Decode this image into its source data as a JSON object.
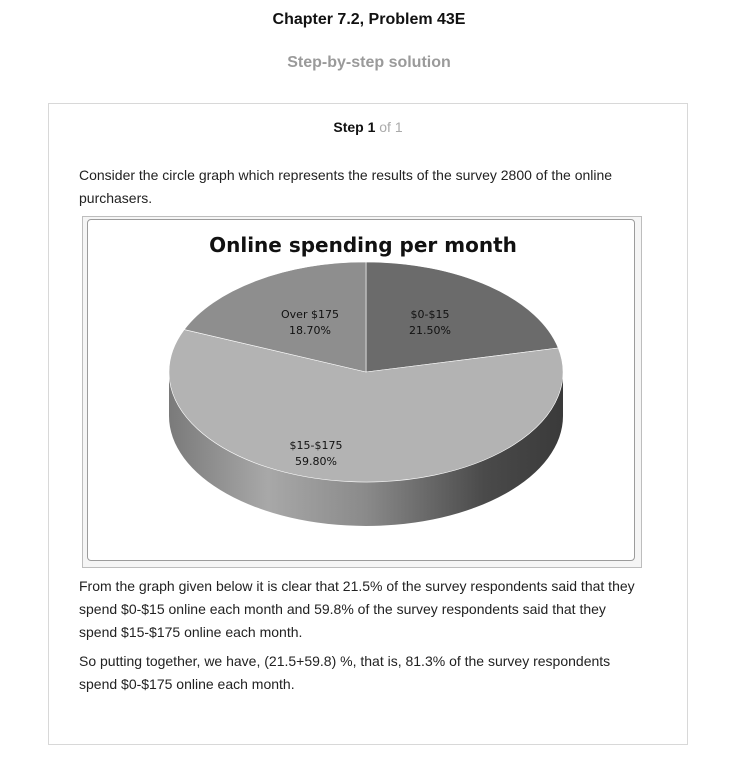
{
  "header": {
    "title": "Chapter 7.2, Problem 43E",
    "subtitle": "Step-by-step solution"
  },
  "step": {
    "label": "Step 1",
    "of": "of 1"
  },
  "content": {
    "intro": "Consider the circle graph which represents the results of the survey 2800 of the online purchasers.",
    "explanation": "From the graph given below it is clear that 21.5% of the survey respondents said that they spend $0-$15 online each month and 59.8% of the survey respondents said that they spend $15-$175 online each month.",
    "conclusion": "So putting together, we have, (21.5+59.8) %, that is, 81.3% of the survey respondents spend $0-$175 online each month."
  },
  "chart_data": {
    "type": "pie",
    "title": "Online spending per month",
    "categories": [
      "$0-$15",
      "$15-$175",
      "Over $175"
    ],
    "values": [
      21.5,
      59.8,
      18.7
    ],
    "labels": [
      "21.50%",
      "59.80%",
      "18.70%"
    ],
    "colors": [
      "#6b6b6b",
      "#b3b3b3",
      "#8e8e8e"
    ],
    "style": "3d"
  }
}
